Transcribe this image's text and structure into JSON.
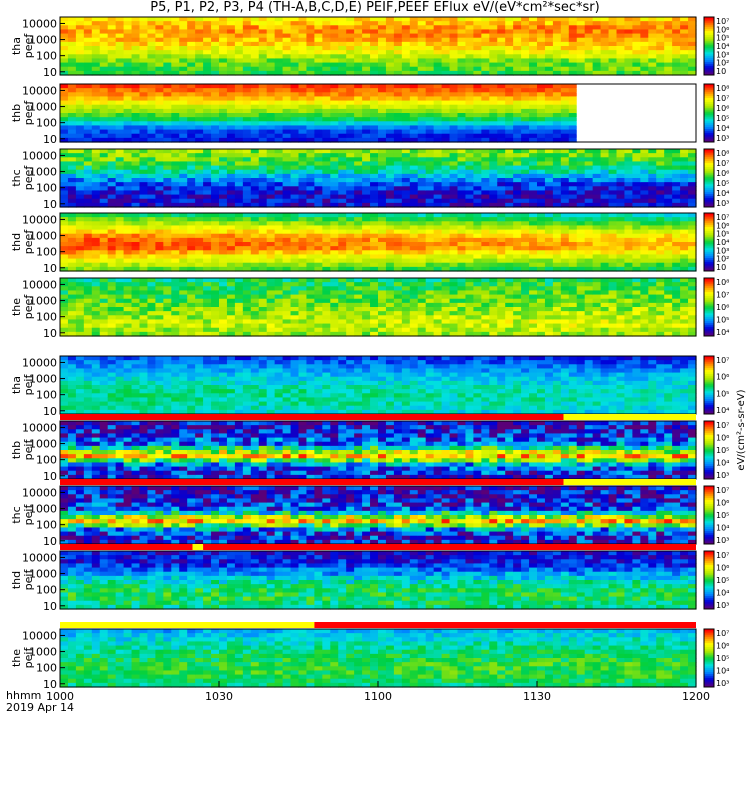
{
  "title": "P5, P1, P2, P3, P4 (TH-A,B,C,D,E) PEIF,PEEF EFlux eV/(eV*cm²*sec*sr)",
  "chart_data": {
    "type": "heatmap",
    "title": "P5, P1, P2, P3, P4 (TH-A,B,C,D,E) PEIF,PEEF EFlux eV/(eV*cm²*sec*sr)",
    "x_ticks": [
      "1000",
      "1030",
      "1100",
      "1130",
      "1200"
    ],
    "x_label_line1": "hhmm",
    "x_label_line2": "2019 Apr 14",
    "y_ticks": [
      "10",
      "100",
      "1000",
      "10000"
    ],
    "colorbar_unit": "eV/(cm²-s-sr-eV)",
    "colormap": [
      "#5a0078",
      "#0000d8",
      "#0088ff",
      "#00e0e0",
      "#00d040",
      "#b0e800",
      "#ffff00",
      "#ff8800",
      "#ff0000"
    ],
    "panels": [
      {
        "name": "tha peef",
        "label_line1": "tha",
        "label_line2": "peef",
        "colorbar_ticks": [
          "10",
          "10²",
          "10³",
          "10⁴",
          "10⁵",
          "10⁶",
          "10⁷"
        ],
        "bands": [
          0.75,
          0.85,
          0.8,
          0.7,
          0.55,
          0.5
        ],
        "trend": 0.05,
        "noise": 0.08,
        "gap_after": null
      },
      {
        "name": "thb peef",
        "label_line1": "thb",
        "label_line2": "peef",
        "colorbar_ticks": [
          "10³",
          "10⁴",
          "10⁵",
          "10⁶",
          "10⁷",
          "10⁸"
        ],
        "bands": [
          0.95,
          0.85,
          0.65,
          0.5,
          0.2,
          0.15
        ],
        "trend": 0,
        "noise": 0.05,
        "gap_after": 1138
      },
      {
        "name": "thc peef",
        "label_line1": "thc",
        "label_line2": "peef",
        "colorbar_ticks": [
          "10³",
          "10⁴",
          "10⁵",
          "10⁶",
          "10⁷",
          "10⁸"
        ],
        "bands": [
          0.6,
          0.55,
          0.4,
          0.2,
          0.12,
          0.12
        ],
        "trend": -0.02,
        "noise": 0.1,
        "gap_after": null
      },
      {
        "name": "thd peef",
        "label_line1": "thd",
        "label_line2": "peef",
        "colorbar_ticks": [
          "10",
          "10²",
          "10³",
          "10⁴",
          "10⁵",
          "10⁶",
          "10⁷"
        ],
        "bands": [
          0.5,
          0.7,
          0.9,
          0.95,
          0.75,
          0.6
        ],
        "trend": -0.12,
        "noise": 0.06,
        "gap_after": null
      },
      {
        "name": "the peef",
        "label_line1": "the",
        "label_line2": "peef",
        "colorbar_ticks": [
          "10⁴",
          "10⁵",
          "10⁶",
          "10⁷",
          "10⁸"
        ],
        "bands": [
          0.45,
          0.5,
          0.55,
          0.6,
          0.65,
          0.6
        ],
        "trend": 0.05,
        "noise": 0.1,
        "gap_after": null
      },
      {
        "name": "tha peif",
        "label_line1": "tha",
        "label_line2": "peif",
        "colorbar_ticks": [
          "10⁴",
          "10⁵",
          "10⁶",
          "10⁷"
        ],
        "bands": [
          0.2,
          0.3,
          0.38,
          0.45,
          0.45,
          0.4
        ],
        "trend": -0.05,
        "noise": 0.07,
        "gap_after": null
      },
      {
        "name": "thb peif",
        "label_line1": "thb",
        "label_line2": "peif",
        "colorbar_ticks": [
          "10³",
          "10⁴",
          "10⁵",
          "10⁶",
          "10⁷"
        ],
        "bands": [
          0.08,
          0.15,
          0.25,
          0.85,
          0.2,
          0.15
        ],
        "trend": 0,
        "noise": 0.18,
        "gap_after": null
      },
      {
        "name": "thc peif",
        "label_line1": "thc",
        "label_line2": "peif",
        "colorbar_ticks": [
          "10³",
          "10⁴",
          "10⁵",
          "10⁶",
          "10⁷"
        ],
        "bands": [
          0.08,
          0.12,
          0.2,
          0.85,
          0.18,
          0.12
        ],
        "trend": 0,
        "noise": 0.18,
        "gap_after": null
      },
      {
        "name": "thd peif",
        "label_line1": "thd",
        "label_line2": "peif",
        "colorbar_ticks": [
          "10³",
          "10⁴",
          "10⁵",
          "10⁶",
          "10⁷"
        ],
        "bands": [
          0.12,
          0.15,
          0.3,
          0.45,
          0.5,
          0.45
        ],
        "trend": 0,
        "noise": 0.1,
        "gap_after": null
      },
      {
        "name": "the peif",
        "label_line1": "the",
        "label_line2": "peif",
        "colorbar_ticks": [
          "10³",
          "10⁴",
          "10⁵",
          "10⁶",
          "10⁷"
        ],
        "bands": [
          0.3,
          0.38,
          0.45,
          0.5,
          0.5,
          0.45
        ],
        "trend": 0.03,
        "noise": 0.08,
        "gap_after": null
      }
    ],
    "separator_strips": [
      {
        "after_panel": 5,
        "segments": [
          {
            "to": 1135,
            "color": "#ff0000"
          },
          {
            "to": 1200,
            "color": "#ffff00"
          }
        ]
      },
      {
        "after_panel": 6,
        "segments": [
          {
            "to": 1135,
            "color": "#ff0000"
          },
          {
            "to": 1200,
            "color": "#ffff00"
          }
        ]
      },
      {
        "after_panel": 7,
        "segments": [
          {
            "to": 1025,
            "color": "#ff0000"
          },
          {
            "to": 1027,
            "color": "#ffff00"
          },
          {
            "to": 1200,
            "color": "#ff0000"
          }
        ]
      },
      {
        "after_panel": 8,
        "segments": [
          {
            "to": 1048,
            "color": "#ffff00"
          },
          {
            "to": 1200,
            "color": "#ff0000"
          }
        ]
      }
    ]
  }
}
